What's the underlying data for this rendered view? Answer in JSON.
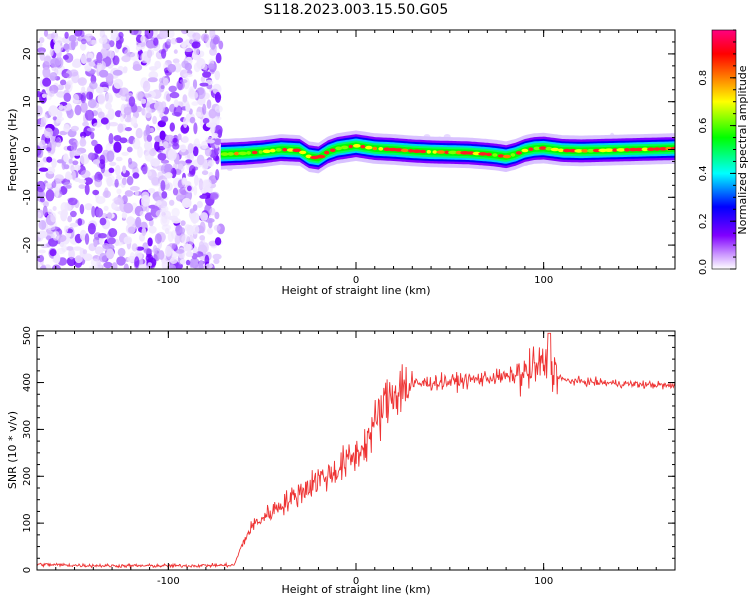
{
  "figure_title": "S118.2023.003.15.50.G05",
  "chart_data": [
    {
      "type": "heatmap",
      "xlabel": "Height of straight line (km)",
      "ylabel": "Frequency (Hz)",
      "xlim": [
        -170,
        170
      ],
      "ylim": [
        -25,
        25
      ],
      "x_ticks": [
        -100,
        0,
        100
      ],
      "y_ticks": [
        20,
        10,
        0,
        -10,
        -20
      ],
      "colorbar": {
        "label": "Normalized spectral amplitude",
        "range": [
          0,
          1
        ],
        "ticks": [
          0.0,
          0.2,
          0.4,
          0.6,
          0.8
        ],
        "colors": [
          "#ffffff",
          "#cc99ff",
          "#8000ff",
          "#0000ff",
          "#00ffff",
          "#00ff00",
          "#ffff00",
          "#ff8000",
          "#ff0000",
          "#ff0080"
        ]
      },
      "noise_region_x": [
        -170,
        -72
      ],
      "ridge": {
        "x": [
          -72,
          -60,
          -50,
          -40,
          -30,
          -25,
          -20,
          -15,
          -10,
          -5,
          0,
          5,
          10,
          20,
          30,
          40,
          50,
          60,
          70,
          75,
          80,
          85,
          90,
          95,
          100,
          110,
          120,
          130,
          140,
          150,
          160,
          170
        ],
        "frequency": [
          -1.0,
          -0.8,
          -0.5,
          0.0,
          -0.2,
          -1.5,
          -1.8,
          -0.5,
          0.2,
          0.5,
          0.8,
          0.5,
          0.2,
          0.0,
          -0.3,
          -0.5,
          -0.6,
          -0.7,
          -1.0,
          -1.2,
          -1.5,
          -1.0,
          -0.2,
          0.2,
          0.3,
          -0.2,
          -0.3,
          -0.2,
          -0.1,
          0.0,
          0.1,
          0.2
        ]
      }
    },
    {
      "type": "line",
      "xlabel": "Height of straight line (km)",
      "ylabel": "SNR (10 * v/v)",
      "xlim": [
        -170,
        170
      ],
      "ylim": [
        0,
        510
      ],
      "x_ticks": [
        -100,
        0,
        100
      ],
      "y_ticks": [
        0,
        100,
        200,
        300,
        400,
        500
      ],
      "color": "#ee3333",
      "series": [
        {
          "x": [
            -170,
            -150,
            -130,
            -110,
            -90,
            -75,
            -65,
            -60,
            -55,
            -50,
            -45,
            -40,
            -35,
            -30,
            -25,
            -20,
            -15,
            -10,
            -5,
            0,
            5,
            10,
            15,
            20,
            25,
            30,
            35,
            40,
            50,
            60,
            70,
            80,
            90,
            95,
            100,
            105,
            110,
            120,
            130,
            140,
            150,
            160,
            170
          ],
          "y": [
            12,
            10,
            9,
            9,
            9,
            10,
            10,
            60,
            95,
            110,
            125,
            140,
            150,
            165,
            180,
            195,
            200,
            215,
            230,
            245,
            270,
            310,
            350,
            380,
            392,
            395,
            398,
            400,
            402,
            405,
            410,
            412,
            418,
            430,
            440,
            430,
            405,
            402,
            400,
            398,
            396,
            395,
            392
          ]
        }
      ]
    }
  ]
}
